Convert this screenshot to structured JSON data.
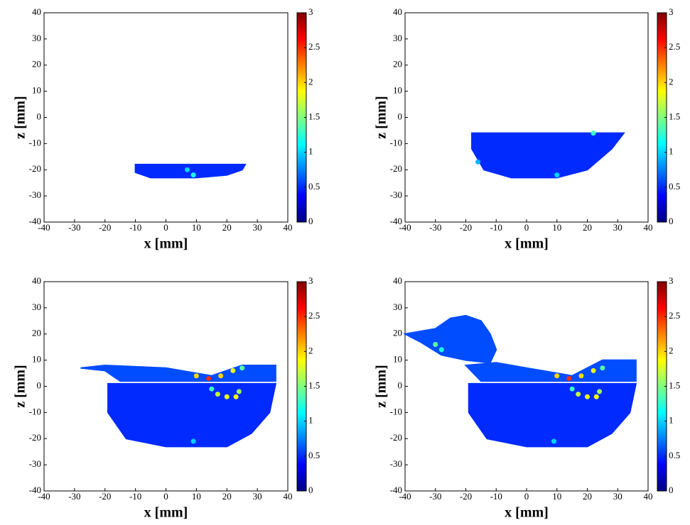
{
  "chart_data": [
    {
      "type": "scatter",
      "xlabel": "x [mm]",
      "ylabel": "z [mm]",
      "xlim": [
        -40,
        40
      ],
      "xticks": [
        -40,
        -30,
        -20,
        -10,
        0,
        10,
        20,
        30,
        40
      ],
      "ylim": [
        -40,
        40
      ],
      "yticks": [
        -40,
        -30,
        -20,
        -10,
        0,
        10,
        20,
        30,
        40
      ],
      "clim": [
        0,
        3
      ],
      "cticks": [
        0,
        0.5,
        1,
        1.5,
        2,
        2.5,
        3
      ],
      "regions": [
        {
          "x": [
            -10,
            26,
            25,
            20,
            10,
            -5,
            -10
          ],
          "values": [
            -18,
            -18,
            -20,
            -22,
            -23,
            -23,
            -21
          ],
          "c": 0.5
        }
      ],
      "points": {
        "x": [
          9,
          7
        ],
        "values": [
          -22,
          -20
        ],
        "c": [
          1.2,
          1.0
        ]
      }
    },
    {
      "type": "scatter",
      "xlabel": "x [mm]",
      "ylabel": "z [mm]",
      "xlim": [
        -40,
        40
      ],
      "xticks": [
        -40,
        -30,
        -20,
        -10,
        0,
        10,
        20,
        30,
        40
      ],
      "ylim": [
        -40,
        40
      ],
      "yticks": [
        -40,
        -30,
        -20,
        -10,
        0,
        10,
        20,
        30,
        40
      ],
      "clim": [
        0,
        3
      ],
      "cticks": [
        0,
        0.5,
        1,
        1.5,
        2,
        2.5,
        3
      ],
      "regions": [
        {
          "x": [
            -18,
            32,
            28,
            20,
            10,
            -5,
            -14,
            -18
          ],
          "values": [
            -6,
            -6,
            -12,
            -20,
            -23,
            -23,
            -20,
            -12
          ],
          "c": 0.5
        }
      ],
      "points": {
        "x": [
          22,
          10,
          -16
        ],
        "values": [
          -6,
          -22,
          -17
        ],
        "c": [
          1.3,
          1.0,
          0.9
        ]
      }
    },
    {
      "type": "scatter",
      "xlabel": "x [mm]",
      "ylabel": "z [mm]",
      "xlim": [
        -40,
        40
      ],
      "xticks": [
        -40,
        -30,
        -20,
        -10,
        0,
        10,
        20,
        30,
        40
      ],
      "ylim": [
        -40,
        40
      ],
      "yticks": [
        -40,
        -30,
        -20,
        -10,
        0,
        10,
        20,
        30,
        40
      ],
      "clim": [
        0,
        3
      ],
      "cticks": [
        0,
        0.5,
        1,
        1.5,
        2,
        2.5,
        3
      ],
      "regions": [
        {
          "x": [
            -19,
            36,
            34,
            28,
            20,
            0,
            -13,
            -19
          ],
          "values": [
            1,
            1,
            -10,
            -18,
            -23,
            -23,
            -20,
            -10
          ],
          "c": 0.5
        },
        {
          "x": [
            -28,
            -20,
            0,
            15,
            25,
            36,
            36,
            -15,
            -20
          ],
          "values": [
            7,
            8,
            7,
            4,
            8,
            8,
            2,
            2,
            6
          ],
          "c": 0.6
        }
      ],
      "points": {
        "x": [
          10,
          14,
          18,
          22,
          25,
          15,
          17,
          20,
          23,
          24,
          9
        ],
        "values": [
          4,
          3,
          4,
          6,
          7,
          -1,
          -3,
          -4,
          -4,
          -2,
          -21
        ],
        "c": [
          2.0,
          2.5,
          2.0,
          1.8,
          1.4,
          1.3,
          1.7,
          1.8,
          1.9,
          1.6,
          1.0
        ]
      }
    },
    {
      "type": "scatter",
      "xlabel": "x [mm]",
      "ylabel": "z [mm]",
      "xlim": [
        -40,
        40
      ],
      "xticks": [
        -40,
        -30,
        -20,
        -10,
        0,
        10,
        20,
        30,
        40
      ],
      "ylim": [
        -40,
        40
      ],
      "yticks": [
        -40,
        -30,
        -20,
        -10,
        0,
        10,
        20,
        30,
        40
      ],
      "clim": [
        0,
        3
      ],
      "cticks": [
        0,
        0.5,
        1,
        1.5,
        2,
        2.5,
        3
      ],
      "regions": [
        {
          "x": [
            -19,
            36,
            34,
            28,
            20,
            0,
            -13,
            -19
          ],
          "values": [
            1,
            1,
            -10,
            -18,
            -23,
            -23,
            -20,
            -10
          ],
          "c": 0.5
        },
        {
          "x": [
            -20,
            -10,
            0,
            15,
            25,
            36,
            36,
            -15
          ],
          "values": [
            8,
            9,
            7,
            4,
            10,
            10,
            2,
            2
          ],
          "c": 0.6
        },
        {
          "x": [
            -40,
            -30,
            -25,
            -20,
            -15,
            -12,
            -10,
            -12,
            -20,
            -28,
            -35
          ],
          "values": [
            20,
            22,
            26,
            27,
            25,
            20,
            14,
            9,
            10,
            12,
            17
          ],
          "c": 0.6
        }
      ],
      "points": {
        "x": [
          10,
          14,
          18,
          22,
          25,
          15,
          17,
          20,
          23,
          24,
          9,
          -30,
          -28
        ],
        "values": [
          4,
          3,
          4,
          6,
          7,
          -1,
          -3,
          -4,
          -4,
          -2,
          -21,
          16,
          14
        ],
        "c": [
          2.0,
          2.5,
          2.0,
          1.8,
          1.4,
          1.3,
          1.7,
          1.8,
          1.9,
          1.6,
          1.0,
          1.4,
          1.2
        ]
      }
    }
  ]
}
